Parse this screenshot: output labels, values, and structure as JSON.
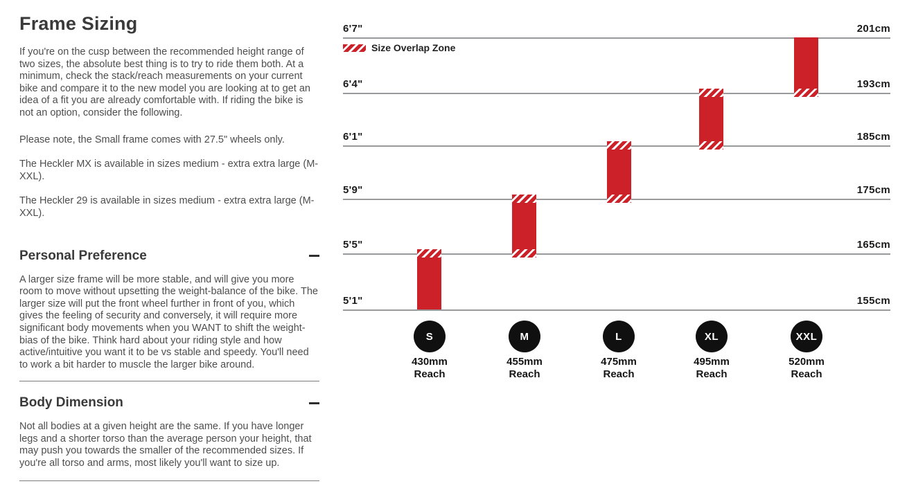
{
  "page": {
    "title": "Frame Sizing",
    "intro_paragraphs": [
      "If you're on the cusp between the recommended height range of two sizes, the absolute best thing is to try to ride them both. At a minimum, check the stack/reach measurements on your current bike and compare it to the new model you are looking at to get an idea of a fit you are already comfortable with. If riding the bike is not an option, consider the following.",
      "Please note, the Small frame comes with 27.5\" wheels only.",
      "The Heckler MX is available in sizes medium - extra extra large (M-XXL).",
      "The Heckler 29 is available in sizes medium - extra extra large (M-XXL)."
    ],
    "sections": [
      {
        "heading": "Personal Preference",
        "toggle_state": "collapsed-minus",
        "body": "A larger size frame will be more stable, and will give you more room to move without upsetting the weight-balance of the bike. The larger size will put the front wheel further in front of you, which gives the feeling of security and conversely, it will require more significant body movements when you WANT to shift the weight-bias of the bike. Think hard about your riding style and how active/intuitive you want it to be vs stable and speedy. You'll need to work a bit harder to muscle the larger bike around."
      },
      {
        "heading": "Body Dimension",
        "toggle_state": "collapsed-minus",
        "body": "Not all bodies at a given height are the same. If you have longer legs and a shorter torso than the average person your height, that may push you towards the smaller of the recommended sizes. If you're all torso and arms, most likely you'll want to size up."
      }
    ]
  },
  "chart_data": {
    "type": "bar",
    "subtype": "vertical-range-bars (rider height ranges per frame size)",
    "legend": "Size Overlap Zone",
    "grid": true,
    "y_axis_left_unit": "feet/inches",
    "y_axis_right_unit": "cm",
    "y_gridlines": [
      {
        "imperial": "6'7\"",
        "metric": "201cm",
        "cm": 201
      },
      {
        "imperial": "6'4\"",
        "metric": "193cm",
        "cm": 193
      },
      {
        "imperial": "6'1\"",
        "metric": "185cm",
        "cm": 185
      },
      {
        "imperial": "5'9\"",
        "metric": "175cm",
        "cm": 175
      },
      {
        "imperial": "5'5\"",
        "metric": "165cm",
        "cm": 165
      },
      {
        "imperial": "5'1\"",
        "metric": "155cm",
        "cm": 155
      }
    ],
    "reach_word": "Reach",
    "series": [
      {
        "size": "S",
        "height_range_cm": [
          155,
          165
        ],
        "height_range_imperial": [
          "5'1\"",
          "5'5\""
        ],
        "reach": "430mm",
        "overlap_top": true,
        "overlap_bottom": false
      },
      {
        "size": "M",
        "height_range_cm": [
          165,
          175
        ],
        "height_range_imperial": [
          "5'5\"",
          "5'9\""
        ],
        "reach": "455mm",
        "overlap_top": true,
        "overlap_bottom": true
      },
      {
        "size": "L",
        "height_range_cm": [
          175,
          185
        ],
        "height_range_imperial": [
          "5'9\"",
          "6'1\""
        ],
        "reach": "475mm",
        "overlap_top": true,
        "overlap_bottom": true
      },
      {
        "size": "XL",
        "height_range_cm": [
          185,
          193
        ],
        "height_range_imperial": [
          "6'1\"",
          "6'4\""
        ],
        "reach": "495mm",
        "overlap_top": true,
        "overlap_bottom": true
      },
      {
        "size": "XXL",
        "height_range_cm": [
          193,
          201
        ],
        "height_range_imperial": [
          "6'4\"",
          "6'7\""
        ],
        "reach": "520mm",
        "overlap_top": false,
        "overlap_bottom": true
      }
    ],
    "colors": {
      "bar_red": "#cc2128",
      "gridline_gray": "#98999a",
      "circle_black": "#101010"
    }
  }
}
